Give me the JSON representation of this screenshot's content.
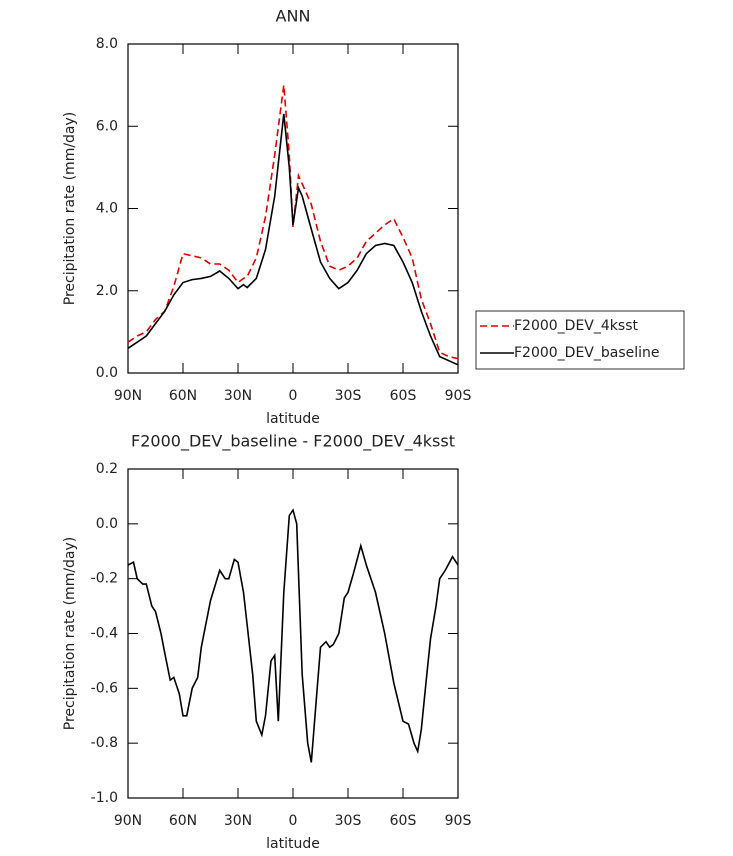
{
  "chart_data": [
    {
      "type": "line",
      "title": "ANN",
      "xlabel": "latitude",
      "ylabel": "Precipitation rate (mm/day)",
      "x": [
        90,
        85,
        80,
        75,
        70,
        65,
        60,
        55,
        50,
        45,
        40,
        35,
        30,
        27,
        25,
        20,
        15,
        10,
        5,
        2,
        0,
        -3,
        -5,
        -10,
        -15,
        -20,
        -25,
        -30,
        -35,
        -40,
        -45,
        -50,
        -55,
        -60,
        -65,
        -70,
        -75,
        -80,
        -85,
        -90
      ],
      "series": [
        {
          "name": "F2000_DEV_4ksst",
          "color": "#e00000",
          "style": "dashed",
          "values": [
            0.75,
            0.9,
            1.0,
            1.3,
            1.5,
            2.1,
            2.9,
            2.85,
            2.8,
            2.65,
            2.65,
            2.5,
            2.2,
            2.3,
            2.35,
            2.8,
            3.8,
            5.3,
            7.0,
            5.3,
            3.55,
            4.8,
            4.6,
            4.1,
            3.2,
            2.6,
            2.5,
            2.6,
            2.8,
            3.2,
            3.4,
            3.6,
            3.75,
            3.3,
            2.8,
            1.8,
            1.2,
            0.5,
            0.4,
            0.35
          ]
        },
        {
          "name": "F2000_DEV_baseline",
          "color": "#000000",
          "style": "solid",
          "values": [
            0.6,
            0.75,
            0.9,
            1.2,
            1.5,
            1.9,
            2.2,
            2.27,
            2.3,
            2.35,
            2.48,
            2.3,
            2.05,
            2.15,
            2.08,
            2.3,
            3.0,
            4.3,
            6.3,
            5.0,
            3.6,
            4.5,
            4.3,
            3.5,
            2.7,
            2.3,
            2.05,
            2.2,
            2.5,
            2.9,
            3.1,
            3.15,
            3.1,
            2.7,
            2.2,
            1.5,
            0.9,
            0.4,
            0.3,
            0.2
          ]
        }
      ],
      "xlim": [
        90,
        -90
      ],
      "xticks": [
        {
          "value": 90,
          "label": "90N"
        },
        {
          "value": 60,
          "label": "60N"
        },
        {
          "value": 30,
          "label": "30N"
        },
        0,
        {
          "value": -30,
          "label": "30S"
        },
        {
          "value": -60,
          "label": "60S"
        },
        {
          "value": -90,
          "label": "90S"
        }
      ],
      "ylim": [
        0,
        8
      ],
      "yticks": [
        {
          "value": 0,
          "label": "0.0"
        },
        {
          "value": 2,
          "label": "2.0"
        },
        {
          "value": 4,
          "label": "4.0"
        },
        {
          "value": 6,
          "label": "6.0"
        },
        {
          "value": 8,
          "label": "8.0"
        }
      ],
      "legend": "outside-right"
    },
    {
      "type": "line",
      "title": "F2000_DEV_baseline - F2000_DEV_4ksst",
      "xlabel": "latitude",
      "ylabel": "Precipitation rate (mm/day)",
      "x": [
        90,
        87,
        85,
        82,
        80,
        77,
        75,
        72,
        70,
        67,
        65,
        62,
        60,
        58,
        55,
        52,
        50,
        45,
        40,
        37,
        35,
        32,
        30,
        27,
        25,
        22,
        20,
        17,
        15,
        12,
        10,
        8,
        5,
        2,
        0,
        -2,
        -5,
        -8,
        -10,
        -12,
        -15,
        -18,
        -20,
        -22,
        -25,
        -28,
        -30,
        -33,
        -37,
        -40,
        -45,
        -50,
        -55,
        -60,
        -63,
        -66,
        -68,
        -70,
        -73,
        -75,
        -78,
        -80,
        -83,
        -87,
        -90
      ],
      "color": "#000000",
      "values": [
        -0.15,
        -0.14,
        -0.2,
        -0.22,
        -0.22,
        -0.3,
        -0.32,
        -0.4,
        -0.47,
        -0.57,
        -0.56,
        -0.62,
        -0.7,
        -0.7,
        -0.6,
        -0.56,
        -0.45,
        -0.28,
        -0.17,
        -0.2,
        -0.2,
        -0.13,
        -0.14,
        -0.25,
        -0.37,
        -0.55,
        -0.72,
        -0.77,
        -0.7,
        -0.5,
        -0.48,
        -0.72,
        -0.25,
        0.03,
        0.05,
        0.0,
        -0.55,
        -0.8,
        -0.87,
        -0.7,
        -0.45,
        -0.43,
        -0.45,
        -0.44,
        -0.4,
        -0.27,
        -0.25,
        -0.18,
        -0.08,
        -0.15,
        -0.25,
        -0.4,
        -0.58,
        -0.72,
        -0.73,
        -0.8,
        -0.83,
        -0.75,
        -0.55,
        -0.42,
        -0.3,
        -0.2,
        -0.17,
        -0.12,
        -0.15
      ],
      "xlim": [
        90,
        -90
      ],
      "xticks": [
        {
          "value": 90,
          "label": "90N"
        },
        {
          "value": 60,
          "label": "60N"
        },
        {
          "value": 30,
          "label": "30N"
        },
        0,
        {
          "value": -30,
          "label": "30S"
        },
        {
          "value": -60,
          "label": "60S"
        },
        {
          "value": -90,
          "label": "90S"
        }
      ],
      "ylim": [
        -1.0,
        0.2
      ],
      "yticks": [
        {
          "value": -1.0,
          "label": "-1.0"
        },
        {
          "value": -0.8,
          "label": "-0.8"
        },
        {
          "value": -0.6,
          "label": "-0.6"
        },
        {
          "value": -0.4,
          "label": "-0.4"
        },
        {
          "value": -0.2,
          "label": "-0.2"
        },
        {
          "value": 0.0,
          "label": "0.0"
        },
        {
          "value": 0.2,
          "label": "0.2"
        }
      ]
    }
  ]
}
